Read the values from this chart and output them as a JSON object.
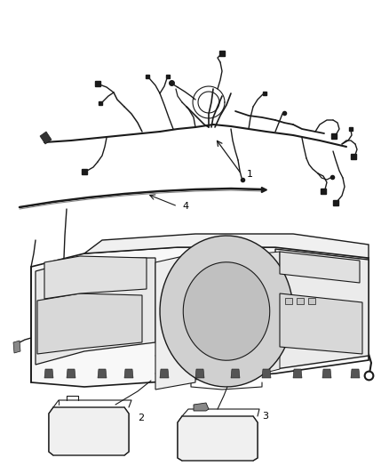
{
  "background_color": "#ffffff",
  "fig_width": 4.38,
  "fig_height": 5.33,
  "dpi": 100,
  "line_color": "#1a1a1a",
  "text_color": "#000000",
  "label_fontsize": 8,
  "gray_color": "#888888",
  "light_gray": "#cccccc"
}
